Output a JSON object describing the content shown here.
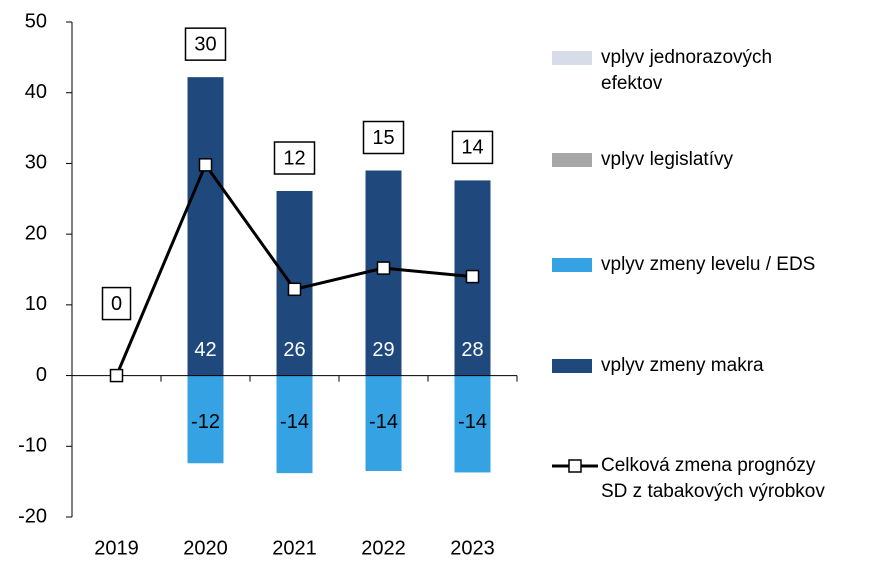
{
  "chart_data": {
    "type": "bar",
    "categories": [
      "2019",
      "2020",
      "2021",
      "2022",
      "2023"
    ],
    "series": [
      {
        "name": "vplyv jednorazových efektov",
        "type": "bar",
        "color": "#d6dce8",
        "values": [
          null,
          null,
          null,
          null,
          null
        ]
      },
      {
        "name": "vplyv legislatívy",
        "type": "bar",
        "color": "#a6a6a6",
        "values": [
          null,
          null,
          null,
          null,
          null
        ]
      },
      {
        "name": "vplyv zmeny levelu / EDS",
        "type": "bar",
        "color": "#35a3e3",
        "values": [
          null,
          -12.4,
          -13.8,
          -13.5,
          -13.7
        ],
        "value_labels": [
          null,
          "-12",
          "-14",
          "-14",
          "-14"
        ]
      },
      {
        "name": "vplyv zmeny makra",
        "type": "bar",
        "color": "#1f497d",
        "values": [
          null,
          42.2,
          26.1,
          29,
          27.6
        ],
        "value_labels": [
          null,
          "42",
          "26",
          "29",
          "28"
        ]
      },
      {
        "name": "Celková zmena prognózy SD z tabakových výrobkov",
        "type": "line",
        "color": "#000000",
        "values": [
          0,
          29.8,
          12.2,
          15.2,
          14
        ],
        "value_labels": [
          "0",
          "30",
          "12",
          "15",
          "14"
        ]
      }
    ],
    "ylim": [
      -20,
      50
    ],
    "yticks": [
      -20,
      -10,
      0,
      10,
      20,
      30,
      40,
      50
    ],
    "grid": false,
    "legend": "right"
  }
}
